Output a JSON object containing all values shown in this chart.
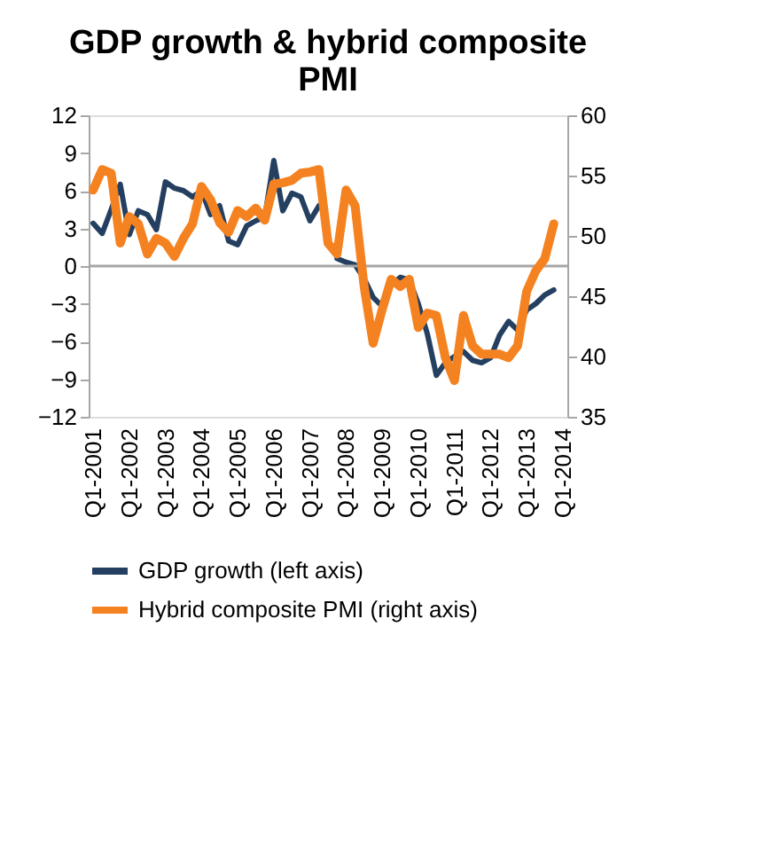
{
  "chart_data": {
    "type": "line",
    "title": "GDP growth & hybrid composite PMI",
    "categories": [
      "Q1-2001",
      null,
      null,
      null,
      "Q1-2002",
      null,
      null,
      null,
      "Q1-2003",
      null,
      null,
      null,
      "Q1-2004",
      null,
      null,
      null,
      "Q1-2005",
      null,
      null,
      null,
      "Q1-2006",
      null,
      null,
      null,
      "Q1-2007",
      null,
      null,
      null,
      "Q1-2008",
      null,
      null,
      null,
      "Q1-2009",
      null,
      null,
      null,
      "Q1-2010",
      null,
      null,
      null,
      "Q1-2011",
      null,
      null,
      null,
      "Q1-2012",
      null,
      null,
      null,
      "Q1-2013",
      null,
      null,
      null,
      "Q1-2014"
    ],
    "series": [
      {
        "name": "GDP growth (left axis)",
        "color": "#243f60",
        "values": [
          3.4,
          2.6,
          4.5,
          6.5,
          2.5,
          4.4,
          4.1,
          2.9,
          6.7,
          6.2,
          6.0,
          5.5,
          6.0,
          4.1,
          4.8,
          2.0,
          1.7,
          3.2,
          3.6,
          3.9,
          8.4,
          4.4,
          5.8,
          5.5,
          3.6,
          4.8,
          null,
          0.6,
          0.3,
          0.1,
          -1.0,
          -2.5,
          -3.2,
          -1.5,
          -0.9,
          -1.1,
          -3.0,
          -5.4,
          -8.7,
          -7.7,
          -7.2,
          -6.8,
          -7.5,
          -7.7,
          -7.3,
          -5.5,
          -4.4,
          -5.1,
          -3.5,
          -3.0,
          -2.3,
          -1.9,
          null
        ]
      },
      {
        "name": "Hybrid composite PMI (right axis)",
        "color": "#f58220",
        "axis": "y2",
        "values": [
          53.8,
          55.5,
          55.2,
          49.4,
          51.6,
          51.0,
          48.5,
          49.8,
          49.4,
          48.3,
          49.8,
          51.0,
          54.1,
          53.0,
          51.1,
          50.3,
          52.1,
          51.6,
          52.3,
          51.3,
          54.3,
          54.4,
          54.6,
          55.2,
          55.3,
          55.5,
          49.4,
          48.5,
          53.8,
          52.5,
          45.8,
          41.1,
          43.9,
          46.4,
          45.8,
          46.4,
          42.4,
          43.6,
          43.4,
          39.9,
          38.0,
          43.4,
          40.9,
          40.2,
          40.2,
          40.2,
          39.9,
          40.9,
          45.4,
          47.1,
          48.1,
          51.0,
          null
        ]
      }
    ],
    "ylim": [
      -12,
      12
    ],
    "yticks": [
      -12,
      -9,
      -6,
      -3,
      0,
      3,
      6,
      9,
      12
    ],
    "y2lim": [
      35,
      60
    ],
    "y2ticks": [
      35,
      40,
      45,
      50,
      55,
      60
    ],
    "ref_lines": [
      {
        "axis": "y",
        "value": 0,
        "color": "#a6a6a6"
      }
    ],
    "grid": false,
    "legend": "bottom",
    "marker": "none",
    "line_style": "solid"
  }
}
